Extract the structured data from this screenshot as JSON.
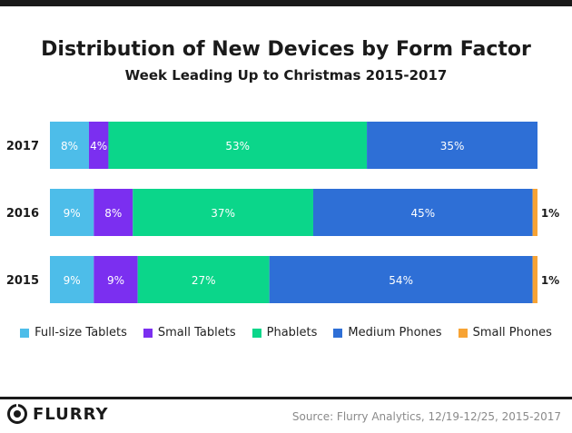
{
  "header": {
    "title": "Distribution of New Devices by Form Factor",
    "subtitle": "Week Leading Up to Christmas 2015-2017"
  },
  "chart_data": {
    "type": "bar",
    "orientation": "horizontal",
    "stacked": true,
    "categories": [
      "2017",
      "2016",
      "2015"
    ],
    "series": [
      {
        "name": "Full-size Tablets",
        "color": "#4dbde9",
        "values": [
          8,
          9,
          9
        ],
        "labels": [
          "8%",
          "9%",
          "9%"
        ]
      },
      {
        "name": "Small Tablets",
        "color": "#7b2ff0",
        "values": [
          4,
          8,
          9
        ],
        "labels": [
          "4%",
          "8%",
          "9%"
        ]
      },
      {
        "name": "Phablets",
        "color": "#0bd68a",
        "values": [
          53,
          37,
          27
        ],
        "labels": [
          "53%",
          "37%",
          "27%"
        ]
      },
      {
        "name": "Medium Phones",
        "color": "#2e6fd6",
        "values": [
          35,
          45,
          54
        ],
        "labels": [
          "35%",
          "45%",
          "54%"
        ]
      },
      {
        "name": "Small Phones",
        "color": "#f7a334",
        "values": [
          0,
          1,
          1
        ],
        "labels": [
          "",
          "1%",
          "1%"
        ]
      }
    ],
    "xlim": [
      0,
      100
    ],
    "grid": false,
    "legend_position": "bottom"
  },
  "footer": {
    "brand": "FLURRY",
    "source": "Source: Flurry Analytics, 12/19-12/25, 2015-2017"
  }
}
